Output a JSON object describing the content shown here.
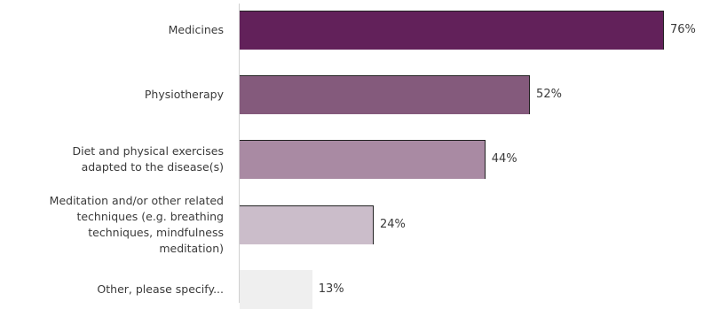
{
  "chart_data": {
    "type": "bar",
    "orientation": "horizontal",
    "categories": [
      "Medicines",
      "Physiotherapy",
      "Diet and physical exercises adapted to the disease(s)",
      "Meditation and/or other related techniques (e.g. breathing techniques, mindfulness meditation)",
      "Other, please specify..."
    ],
    "category_lines": [
      [
        "Medicines"
      ],
      [
        "Physiotherapy"
      ],
      [
        "Diet and physical exercises",
        "adapted to the disease(s)"
      ],
      [
        "Meditation and/or other related",
        "techniques (e.g. breathing",
        "techniques, mindfulness",
        "meditation)"
      ],
      [
        "Other, please specify..."
      ]
    ],
    "values": [
      76,
      52,
      44,
      24,
      13
    ],
    "value_labels": [
      "76%",
      "52%",
      "44%",
      "24%",
      "13%"
    ],
    "colors": [
      "#62215a",
      "#845a7c",
      "#a98aa3",
      "#cbbdca",
      "#efefef"
    ],
    "xlim": [
      0,
      76
    ],
    "grid": false,
    "legend": "none"
  }
}
